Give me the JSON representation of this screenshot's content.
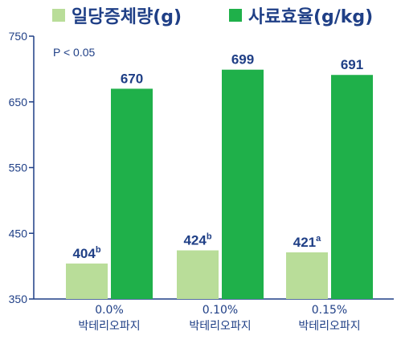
{
  "chart_data": {
    "type": "bar",
    "categories": [
      {
        "line1": "0.0%",
        "line2": "박테리오파지"
      },
      {
        "line1": "0.10%",
        "line2": "박테리오파지"
      },
      {
        "line1": "0.15%",
        "line2": "박테리오파지"
      }
    ],
    "series": [
      {
        "name": "일당증체량(g)",
        "color": "#b9dd99",
        "values": [
          404,
          424,
          421
        ],
        "value_labels": [
          "404",
          "424",
          "421"
        ],
        "superscripts": [
          "b",
          "b",
          "a"
        ]
      },
      {
        "name": "사료효율(g/kg)",
        "color": "#1fb04a",
        "values": [
          670,
          699,
          691
        ],
        "value_labels": [
          "670",
          "699",
          "691"
        ],
        "superscripts": [
          "",
          "",
          ""
        ]
      }
    ],
    "ylim": [
      350,
      750
    ],
    "yticks": [
      350,
      450,
      550,
      650,
      750
    ],
    "annotation": "P < 0.05",
    "legend_position": "top",
    "grid": false,
    "axis_color": "#1f3f86",
    "label_color": "#1f3f86"
  }
}
